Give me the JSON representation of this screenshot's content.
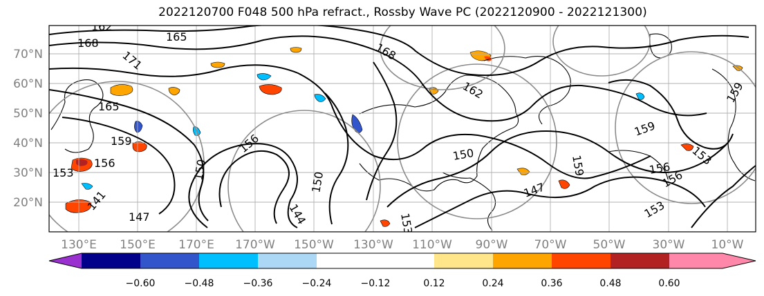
{
  "title": "2022120700 F048 500 hPa refract., Rossby Wave PC (2022120900 - 2022121300)",
  "map": {
    "lat_labels": [
      "70°N",
      "60°N",
      "50°N",
      "40°N",
      "30°N",
      "20°N"
    ],
    "lon_labels": [
      "130°E",
      "150°E",
      "170°E",
      "170°W",
      "150°W",
      "130°W",
      "110°W",
      "90°W",
      "70°W",
      "50°W",
      "30°W",
      "10°W"
    ],
    "contour_labels": [
      "162",
      "165",
      "168",
      "171",
      "165",
      "159",
      "156",
      "153",
      "150",
      "147",
      "144",
      "141",
      "168",
      "162",
      "159",
      "159",
      "156",
      "153",
      "150",
      "147",
      "153",
      "156",
      "159",
      "156",
      "153",
      "150"
    ],
    "colors": {
      "label_gray": "#7f7f7f",
      "grid_gray": "#b0b0b0",
      "ellipse_gray": "#8a8a8a",
      "contour_black": "#000000"
    }
  },
  "colorbar": {
    "ticks": [
      "−0.60",
      "−0.48",
      "−0.36",
      "−0.24",
      "−0.12",
      "0.12",
      "0.24",
      "0.36",
      "0.48",
      "0.60"
    ],
    "colors": [
      "#9b30d0",
      "#00008b",
      "#3355cc",
      "#00bfff",
      "#add8f5",
      "#ffffff",
      "#ffe68a",
      "#ffa500",
      "#ff4500",
      "#b22222",
      "#ff88aa"
    ],
    "extend": "both"
  }
}
